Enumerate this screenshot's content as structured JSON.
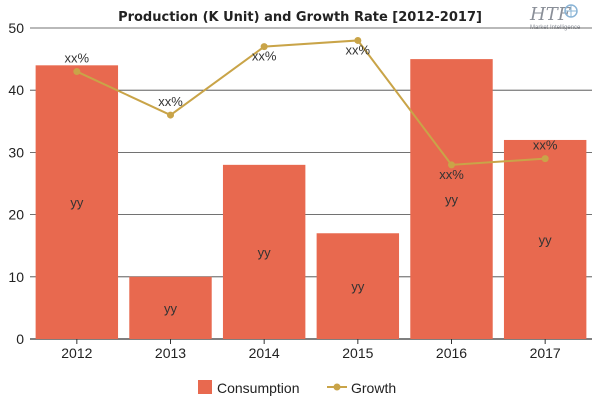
{
  "chart_data": {
    "type": "bar",
    "title": "Production (K Unit) and Growth Rate [2012-2017]",
    "categories": [
      "2012",
      "2013",
      "2014",
      "2015",
      "2016",
      "2017"
    ],
    "ylim": [
      0,
      50
    ],
    "yticks": [
      "0",
      "10",
      "20",
      "30",
      "40",
      "50"
    ],
    "grid": true,
    "legend_position": "bottom",
    "series": [
      {
        "name": "Consumption",
        "type": "bar",
        "color": "#e8694f",
        "values": [
          44,
          10,
          28,
          17,
          45,
          32
        ],
        "labels": [
          "yy",
          "yy",
          "yy",
          "yy",
          "yy",
          "yy"
        ]
      },
      {
        "name": "Growth",
        "type": "line",
        "color": "#c9a448",
        "values": [
          43,
          36,
          47,
          48,
          28,
          29
        ],
        "labels": [
          "xx%",
          "xx%",
          "xx%",
          "xx%",
          "xx%",
          "xx%"
        ]
      }
    ]
  },
  "logo": {
    "main": "HTF",
    "sub": "Market Intelligence",
    "icon": "globe-icon"
  }
}
